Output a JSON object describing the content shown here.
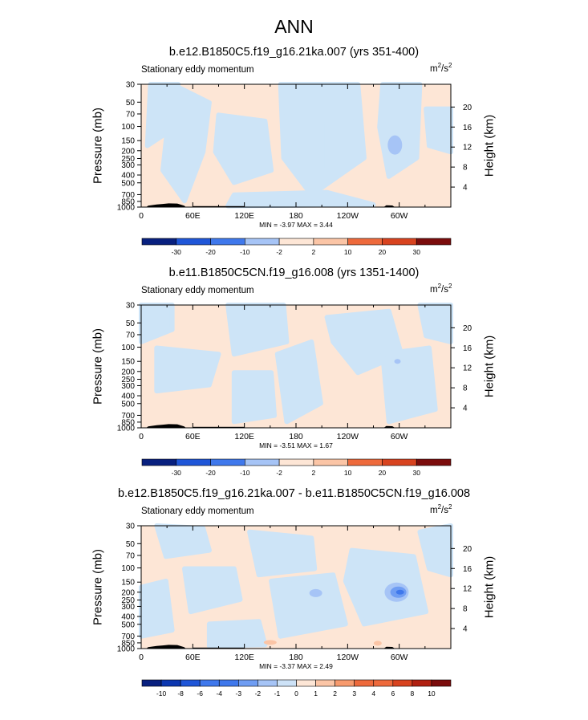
{
  "main_title": "ANN",
  "chart_data": [
    {
      "type": "heatmap",
      "title": "b.e12.B1850C5.f19_g16.21ka.007 (yrs 351-400)",
      "subtitle": "Stationary eddy momentum",
      "units": "m2/s2",
      "xlabel": "",
      "ylabel": "Pressure (mb)",
      "ylabel_right": "Height (km)",
      "x_ticks": [
        "0",
        "60E",
        "120E",
        "180",
        "120W",
        "60W"
      ],
      "y_ticks": [
        "30",
        "50",
        "70",
        "100",
        "150",
        "200",
        "250",
        "300",
        "400",
        "500",
        "700",
        "850",
        "1000"
      ],
      "y_right_ticks": [
        "4",
        "8",
        "12",
        "16",
        "20"
      ],
      "stats_text": "MIN = -3.97  MAX =  3.44",
      "min": -3.97,
      "max": 3.44,
      "colorbar_labels": [
        "-30",
        "-20",
        "-10",
        "-2",
        "2",
        "10",
        "20",
        "30"
      ],
      "features": [
        {
          "lon": 295,
          "p": 175,
          "value": -4,
          "label": "weak negative center"
        }
      ]
    },
    {
      "type": "heatmap",
      "title": "b.e11.B1850C5CN.f19_g16.008 (yrs 1351-1400)",
      "subtitle": "Stationary eddy momentum",
      "units": "m2/s2",
      "xlabel": "",
      "ylabel": "Pressure (mb)",
      "ylabel_right": "Height (km)",
      "x_ticks": [
        "0",
        "60E",
        "120E",
        "180",
        "120W",
        "60W"
      ],
      "y_ticks": [
        "30",
        "50",
        "70",
        "100",
        "150",
        "200",
        "250",
        "300",
        "400",
        "500",
        "700",
        "850",
        "1000"
      ],
      "y_right_ticks": [
        "4",
        "8",
        "12",
        "16",
        "20"
      ],
      "stats_text": "MIN = -3.51  MAX =  1.67",
      "min": -3.51,
      "max": 1.67,
      "colorbar_labels": [
        "-30",
        "-20",
        "-10",
        "-2",
        "2",
        "10",
        "20",
        "30"
      ]
    },
    {
      "type": "heatmap",
      "title": "b.e12.B1850C5.f19_g16.21ka.007 - b.e11.B1850C5CN.f19_g16.008",
      "subtitle": "Stationary eddy momentum",
      "units": "m2/s2",
      "xlabel": "",
      "ylabel": "Pressure (mb)",
      "ylabel_right": "Height (km)",
      "x_ticks": [
        "0",
        "60E",
        "120E",
        "180",
        "120W",
        "60W"
      ],
      "y_ticks": [
        "30",
        "50",
        "70",
        "100",
        "150",
        "200",
        "250",
        "300",
        "400",
        "500",
        "700",
        "850",
        "1000"
      ],
      "y_right_ticks": [
        "4",
        "8",
        "12",
        "16",
        "20"
      ],
      "stats_text": "MIN = -3.37  MAX =  2.49",
      "min": -3.37,
      "max": 2.49,
      "colorbar_labels": [
        "-10",
        "-8",
        "-6",
        "-4",
        "-3",
        "-2",
        "-1",
        "0",
        "1",
        "2",
        "3",
        "4",
        "6",
        "8",
        "10"
      ]
    }
  ],
  "colors": {
    "neg_light": "#cde4f7",
    "pos_light": "#fde6d6",
    "topography": "#000000",
    "colorbar": [
      "#08207f",
      "#0c37b0",
      "#1f56d8",
      "#3f78ec",
      "#6f9df3",
      "#a6c4f6",
      "#cde2f7",
      "#fde6d6",
      "#fbc5a6",
      "#f79a6d",
      "#ee6a3c",
      "#d8431f",
      "#b02010",
      "#7b0c0c"
    ]
  }
}
